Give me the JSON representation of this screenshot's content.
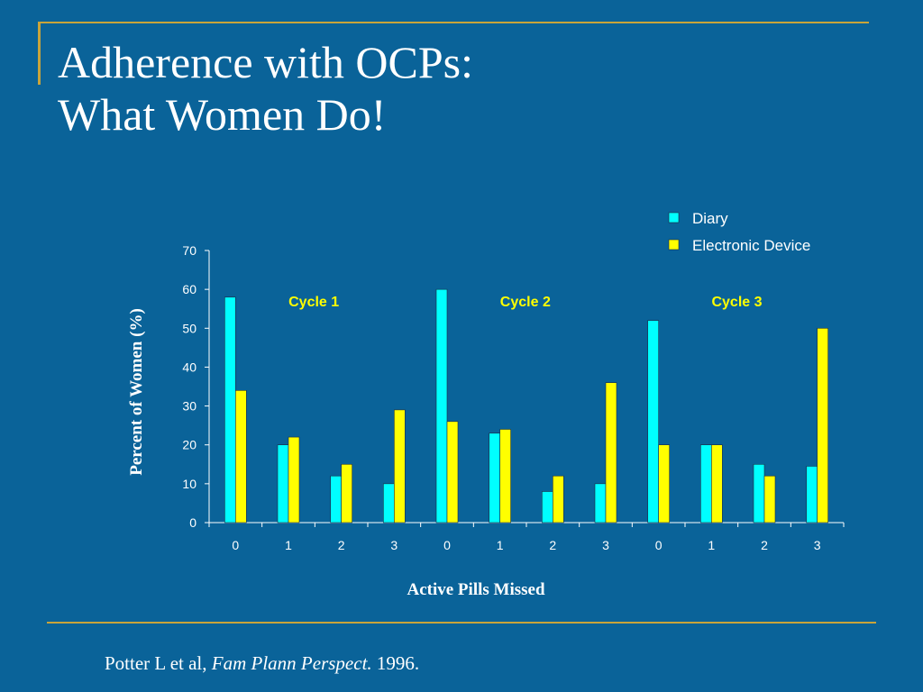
{
  "slide": {
    "title_line1": "Adherence with OCPs:",
    "title_line2": "What Women Do!",
    "citation_authors": "Potter L et al,",
    "citation_journal": "Fam Plann Perspect.",
    "citation_year": "1996."
  },
  "chart_data": {
    "type": "bar",
    "categories": [
      "0",
      "1",
      "2",
      "3",
      "0",
      "1",
      "2",
      "3",
      "0",
      "1",
      "2",
      "3"
    ],
    "series": [
      {
        "name": "Diary",
        "color": "#00ffff",
        "values": [
          58,
          20,
          12,
          10,
          60,
          23,
          8,
          10,
          52,
          20,
          15,
          14.5
        ]
      },
      {
        "name": "Electronic Device",
        "color": "#ffff00",
        "values": [
          34,
          22,
          15,
          29,
          26,
          24,
          12,
          36,
          20,
          20,
          12,
          50
        ]
      }
    ],
    "ylim": [
      0,
      70
    ],
    "yticks": [
      0,
      10,
      20,
      30,
      40,
      50,
      60,
      70
    ],
    "xlabel": "Active Pills Missed",
    "ylabel": "Percent of Women (%)",
    "annotations": [
      "Cycle 1",
      "Cycle 2",
      "Cycle 3"
    ],
    "legend_position": "top-right",
    "grid": false
  }
}
